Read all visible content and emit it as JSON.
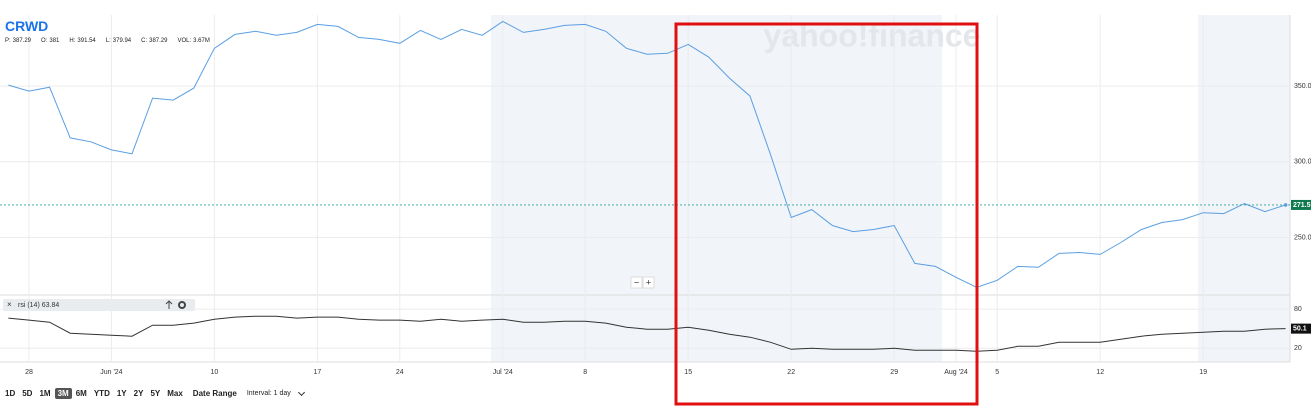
{
  "chart_data": {
    "type": "line",
    "title": "CRWD",
    "quote": [
      {
        "label": "P:",
        "value": "387.29"
      },
      {
        "label": "O:",
        "value": "381"
      },
      {
        "label": "H:",
        "value": "391.54"
      },
      {
        "label": "L:",
        "value": "379.94"
      },
      {
        "label": "C:",
        "value": "387.29"
      },
      {
        "label": "VOL:",
        "value": "3.67M"
      }
    ],
    "watermark": "yahoo!finance",
    "categories": [
      null,
      "28",
      null,
      null,
      null,
      "Jun '24",
      null,
      null,
      null,
      null,
      "10",
      null,
      null,
      null,
      null,
      "17",
      null,
      null,
      null,
      "24",
      null,
      null,
      null,
      null,
      "Jul '24",
      null,
      null,
      null,
      "8",
      null,
      null,
      null,
      null,
      "15",
      null,
      null,
      null,
      null,
      "22",
      null,
      null,
      null,
      null,
      "29",
      null,
      null,
      "Aug '24",
      null,
      "5",
      null,
      null,
      null,
      null,
      "12",
      null,
      null,
      null,
      null,
      "19",
      null,
      null,
      null,
      null
    ],
    "series": [
      {
        "color": "#5b9fe3",
        "axis": "y",
        "values": [
          350.7,
          346.7,
          349.3,
          315.8,
          313.2,
          307.9,
          305.3,
          342.1,
          340.8,
          348.7,
          375.0,
          384.2,
          386.2,
          383.6,
          385.5,
          390.8,
          389.5,
          382.2,
          380.9,
          378.3,
          386.8,
          380.9,
          387.5,
          383.6,
          392.8,
          385.5,
          387.5,
          390.1,
          390.8,
          386.2,
          375.0,
          371.1,
          371.7,
          377.6,
          369.1,
          355.3,
          343.4,
          304.6,
          263.2,
          268.4,
          257.9,
          253.9,
          255.3,
          257.9,
          232.9,
          230.9,
          223.7,
          217.1,
          221.7,
          230.9,
          230.3,
          239.5,
          240.1,
          238.8,
          246.7,
          255.3,
          259.9,
          261.8,
          266.4,
          265.8,
          272.4,
          267.1,
          271.5
        ]
      },
      {
        "name": "rsi (14) 63.84",
        "color": "#333333",
        "axis": "y2",
        "values": [
          66.2,
          63.1,
          60.0,
          43.1,
          41.5,
          40.0,
          38.5,
          55.4,
          55.4,
          58.5,
          64.6,
          67.7,
          69.2,
          69.2,
          66.2,
          67.7,
          67.7,
          64.6,
          63.1,
          63.1,
          61.5,
          64.6,
          61.5,
          63.1,
          64.6,
          60.0,
          60.0,
          61.5,
          61.5,
          58.5,
          52.3,
          49.2,
          49.2,
          52.3,
          47.7,
          41.5,
          36.9,
          29.2,
          18.5,
          20.0,
          18.5,
          18.5,
          18.5,
          20.0,
          16.9,
          16.9,
          16.9,
          15.4,
          16.9,
          23.1,
          23.1,
          29.2,
          29.2,
          29.2,
          33.8,
          38.5,
          41.5,
          43.1,
          44.6,
          46.2,
          46.2,
          49.2,
          50.1
        ]
      }
    ],
    "ylim": [
      212,
      397
    ],
    "yticks": [
      {
        "value": 250,
        "label": "250.0"
      },
      {
        "value": 300,
        "label": "300.0"
      },
      {
        "value": 350,
        "label": "350.0"
      }
    ],
    "y2lim": [
      -1,
      97
    ],
    "y2ticks": [
      20,
      80
    ],
    "grid": true,
    "zoom": [
      "−",
      "+"
    ],
    "ranges": [
      "1D",
      "5D",
      "1M",
      "3M",
      "6M",
      "YTD",
      "1Y",
      "2Y",
      "5Y",
      "Max"
    ],
    "selected_range": "3M",
    "date_range": "Date Range",
    "interval": "Interval: 1 day"
  }
}
